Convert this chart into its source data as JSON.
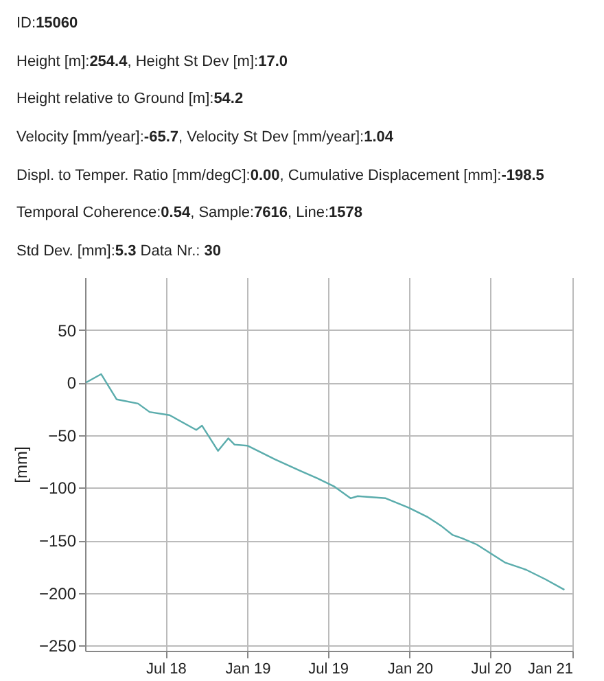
{
  "chart_data": {
    "type": "line",
    "annotations": [
      "ID:15060",
      "Height [m]:254.4, Height St Dev [m]:17.0",
      "Height relative to Ground [m]:54.2",
      "Velocity [mm/year]:-65.7, Velocity St Dev [mm/year]:1.04",
      "Displ. to Temper. Ratio [mm/degC]:0.00, Cumulative Displacement [mm]:-198.5",
      "Temporal Coherence:0.54, Sample:7616, Line:1578",
      "Std Dev. [mm]:5.3 Data Nr.: 30"
    ],
    "ylabel": "[mm]",
    "x": [
      "2018-01-03",
      "2018-02-06",
      "2018-03-13",
      "2018-04-30",
      "2018-05-26",
      "2018-07-10",
      "2018-09-08",
      "2018-09-21",
      "2018-10-27",
      "2018-11-19",
      "2018-12-03",
      "2019-01-01",
      "2019-03-04",
      "2019-04-30",
      "2019-06-07",
      "2019-07-16",
      "2019-08-21",
      "2019-09-06",
      "2019-11-08",
      "2019-12-30",
      "2020-02-11",
      "2020-03-11",
      "2020-04-07",
      "2020-04-28",
      "2020-05-31",
      "2020-08-02",
      "2020-09-19",
      "2020-11-01",
      "2020-12-14"
    ],
    "series": [
      {
        "color": "#5aacac",
        "values": [
          0,
          8,
          -16,
          -20,
          -28,
          -31,
          -45,
          -41,
          -65,
          -53,
          -59,
          -60,
          -73,
          -84,
          -91,
          -99,
          -110,
          -108,
          -110,
          -119,
          -128,
          -136,
          -145,
          -148,
          -154,
          -171,
          -178,
          -187,
          -197
        ]
      }
    ],
    "xlim": [
      "2018-01-01",
      "2021-01-01"
    ],
    "xticks": [
      {
        "value": "2018-07-01",
        "label": "Jul 18"
      },
      {
        "value": "2019-01-01",
        "label": "Jan 19"
      },
      {
        "value": "2019-07-01",
        "label": "Jul 19"
      },
      {
        "value": "2020-01-01",
        "label": "Jan 20"
      },
      {
        "value": "2020-07-01",
        "label": "Jul 20"
      },
      {
        "value": "2021-01-01",
        "label": "Jan 21"
      }
    ],
    "ylim": [
      -255,
      100
    ],
    "yticks": [
      50,
      0,
      -50,
      -100,
      -150,
      -200,
      -250
    ],
    "grid": true,
    "marker": "none",
    "line_style": "solid"
  }
}
